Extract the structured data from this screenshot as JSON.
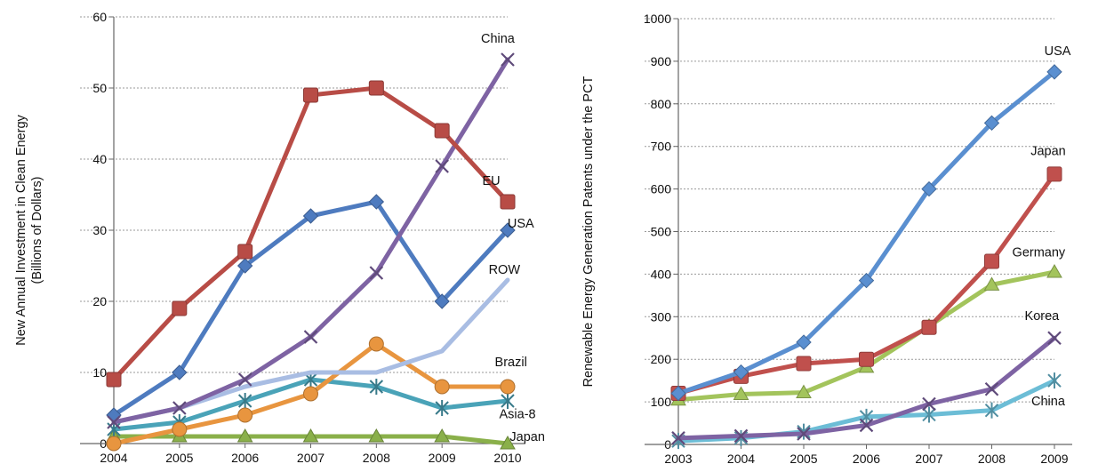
{
  "chart_data": [
    {
      "type": "line",
      "title": "",
      "xlabel": "",
      "ylabel": "New Annual Investment in Clean Energy (Billions of Dollars)",
      "ylabel_lines": [
        "New Annual Investment in Clean Energy",
        "(Billions of Dollars)"
      ],
      "x": [
        2004,
        2005,
        2006,
        2007,
        2008,
        2009,
        2010
      ],
      "xlim": [
        2004,
        2010
      ],
      "ylim": [
        0,
        60
      ],
      "yticks": [
        0,
        10,
        20,
        30,
        40,
        50,
        60
      ],
      "grid": true,
      "legend": "inline-labels",
      "series": [
        {
          "name": "Japan",
          "color": "#8ab04a",
          "marker": "triangle",
          "values": [
            1,
            1,
            1,
            1,
            1,
            1,
            0
          ]
        },
        {
          "name": "Asia-8",
          "color": "#4aa3b8",
          "marker": "star",
          "values": [
            2,
            3,
            6,
            9,
            8,
            5,
            6
          ]
        },
        {
          "name": "Brazil",
          "color": "#e8953f",
          "marker": "circle",
          "values": [
            0,
            2,
            4,
            7,
            14,
            8,
            8
          ]
        },
        {
          "name": "ROW",
          "color": "#a9bde3",
          "marker": "none",
          "values": [
            3,
            5,
            8,
            10,
            10,
            13,
            23
          ]
        },
        {
          "name": "USA",
          "color": "#4e7bbf",
          "marker": "diamond",
          "values": [
            4,
            10,
            25,
            32,
            34,
            20,
            30
          ]
        },
        {
          "name": "China",
          "color": "#7e63a3",
          "marker": "x",
          "values": [
            3,
            5,
            9,
            15,
            24,
            39,
            54
          ]
        },
        {
          "name": "EU",
          "color": "#b84c46",
          "marker": "square",
          "values": [
            9,
            19,
            27,
            49,
            50,
            44,
            34
          ]
        }
      ],
      "labels": [
        {
          "text": "China",
          "x": 2009.85,
          "y": 57
        },
        {
          "text": "EU",
          "x": 2009.75,
          "y": 37
        },
        {
          "text": "USA",
          "x": 2010.2,
          "y": 31
        },
        {
          "text": "ROW",
          "x": 2009.95,
          "y": 24.5
        },
        {
          "text": "Brazil",
          "x": 2010.05,
          "y": 11.5
        },
        {
          "text": "Asia-8",
          "x": 2010.15,
          "y": 4.2
        },
        {
          "text": "Japan",
          "x": 2010.3,
          "y": 1
        }
      ]
    },
    {
      "type": "line",
      "title": "",
      "xlabel": "",
      "ylabel": "Renewable Energy Generation Patents under the PCT",
      "ylabel_lines": [
        "Renewable Energy Generation Patents under the PCT"
      ],
      "x": [
        2003,
        2004,
        2005,
        2006,
        2007,
        2008,
        2009
      ],
      "xlim": [
        2003,
        2009
      ],
      "ylim": [
        0,
        1000
      ],
      "yticks": [
        0,
        100,
        200,
        300,
        400,
        500,
        600,
        700,
        800,
        900,
        1000
      ],
      "grid": true,
      "legend": "inline-labels",
      "series": [
        {
          "name": "China",
          "color": "#6cbdd6",
          "marker": "star",
          "values": [
            8,
            15,
            30,
            65,
            70,
            80,
            150
          ]
        },
        {
          "name": "Korea",
          "color": "#7e63a3",
          "marker": "x",
          "values": [
            15,
            20,
            25,
            45,
            95,
            130,
            250
          ]
        },
        {
          "name": "Germany",
          "color": "#a3c45c",
          "marker": "triangle",
          "values": [
            105,
            118,
            122,
            182,
            278,
            375,
            405
          ]
        },
        {
          "name": "Japan",
          "color": "#c0504d",
          "marker": "square",
          "values": [
            120,
            160,
            190,
            200,
            275,
            430,
            635
          ]
        },
        {
          "name": "USA",
          "color": "#5a8fd0",
          "marker": "diamond",
          "values": [
            120,
            170,
            240,
            385,
            600,
            755,
            875
          ]
        }
      ],
      "labels": [
        {
          "text": "USA",
          "x": 2009.05,
          "y": 925
        },
        {
          "text": "Japan",
          "x": 2008.9,
          "y": 690
        },
        {
          "text": "Germany",
          "x": 2008.75,
          "y": 452
        },
        {
          "text": "Korea",
          "x": 2008.8,
          "y": 303
        },
        {
          "text": "China",
          "x": 2008.9,
          "y": 102
        }
      ]
    }
  ]
}
